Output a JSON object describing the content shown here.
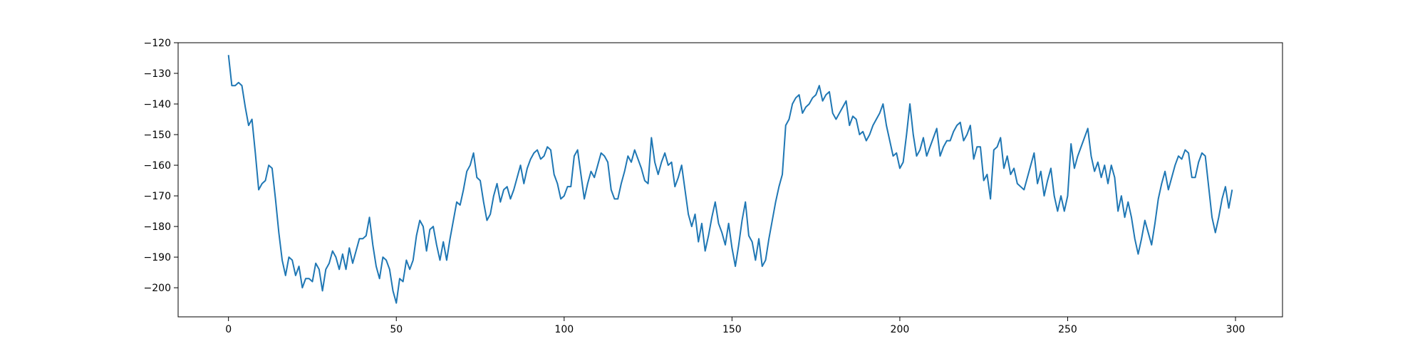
{
  "chart_data": {
    "type": "line",
    "title": "",
    "xlabel": "",
    "ylabel": "",
    "xlim": [
      -15,
      314
    ],
    "ylim": [
      -209.5,
      -120
    ],
    "grid": false,
    "x_ticks": [
      0,
      50,
      100,
      150,
      200,
      250,
      300
    ],
    "y_ticks": [
      -200,
      -190,
      -180,
      -170,
      -160,
      -150,
      -140,
      -130,
      -120
    ],
    "x_tick_labels": [
      "0",
      "50",
      "100",
      "150",
      "200",
      "250",
      "300"
    ],
    "y_tick_labels": [
      "−200",
      "−190",
      "−180",
      "−170",
      "−160",
      "−150",
      "−140",
      "−130",
      "−120"
    ],
    "series": [
      {
        "color": "#1f77b4",
        "x": [
          0,
          1,
          2,
          3,
          4,
          5,
          6,
          7,
          8,
          9,
          10,
          11,
          12,
          13,
          14,
          15,
          16,
          17,
          18,
          19,
          20,
          21,
          22,
          23,
          24,
          25,
          26,
          27,
          28,
          29,
          30,
          31,
          32,
          33,
          34,
          35,
          36,
          37,
          38,
          39,
          40,
          41,
          42,
          43,
          44,
          45,
          46,
          47,
          48,
          49,
          50,
          51,
          52,
          53,
          54,
          55,
          56,
          57,
          58,
          59,
          60,
          61,
          62,
          63,
          64,
          65,
          66,
          67,
          68,
          69,
          70,
          71,
          72,
          73,
          74,
          75,
          76,
          77,
          78,
          79,
          80,
          81,
          82,
          83,
          84,
          85,
          86,
          87,
          88,
          89,
          90,
          91,
          92,
          93,
          94,
          95,
          96,
          97,
          98,
          99,
          100,
          101,
          102,
          103,
          104,
          105,
          106,
          107,
          108,
          109,
          110,
          111,
          112,
          113,
          114,
          115,
          116,
          117,
          118,
          119,
          120,
          121,
          122,
          123,
          124,
          125,
          126,
          127,
          128,
          129,
          130,
          131,
          132,
          133,
          134,
          135,
          136,
          137,
          138,
          139,
          140,
          141,
          142,
          143,
          144,
          145,
          146,
          147,
          148,
          149,
          150,
          151,
          152,
          153,
          154,
          155,
          156,
          157,
          158,
          159,
          160,
          161,
          162,
          163,
          164,
          165,
          166,
          167,
          168,
          169,
          170,
          171,
          172,
          173,
          174,
          175,
          176,
          177,
          178,
          179,
          180,
          181,
          182,
          183,
          184,
          185,
          186,
          187,
          188,
          189,
          190,
          191,
          192,
          193,
          194,
          195,
          196,
          197,
          198,
          199,
          200,
          201,
          202,
          203,
          204,
          205,
          206,
          207,
          208,
          209,
          210,
          211,
          212,
          213,
          214,
          215,
          216,
          217,
          218,
          219,
          220,
          221,
          222,
          223,
          224,
          225,
          226,
          227,
          228,
          229,
          230,
          231,
          232,
          233,
          234,
          235,
          236,
          237,
          238,
          239,
          240,
          241,
          242,
          243,
          244,
          245,
          246,
          247,
          248,
          249,
          250,
          251,
          252,
          253,
          254,
          255,
          256,
          257,
          258,
          259,
          260,
          261,
          262,
          263,
          264,
          265,
          266,
          267,
          268,
          269,
          270,
          271,
          272,
          273,
          274,
          275,
          276,
          277,
          278,
          279,
          280,
          281,
          282,
          283,
          284,
          285,
          286,
          287,
          288,
          289,
          290,
          291,
          292,
          293,
          294,
          295,
          296,
          297,
          298,
          299
        ],
        "y": [
          -124,
          -134,
          -134,
          -133,
          -134,
          -141,
          -147,
          -145,
          -156,
          -168,
          -166,
          -165,
          -160,
          -161,
          -171,
          -182,
          -191,
          -196,
          -190,
          -191,
          -196,
          -193,
          -200,
          -197,
          -197,
          -198,
          -192,
          -194,
          -201,
          -194,
          -192,
          -188,
          -190,
          -194,
          -189,
          -194,
          -187,
          -192,
          -188,
          -184,
          -184,
          -183,
          -177,
          -186,
          -193,
          -197,
          -190,
          -191,
          -194,
          -201,
          -205,
          -197,
          -198,
          -191,
          -194,
          -191,
          -183,
          -178,
          -180,
          -188,
          -181,
          -180,
          -186,
          -191,
          -185,
          -191,
          -184,
          -178,
          -172,
          -173,
          -168,
          -162,
          -160,
          -156,
          -164,
          -165,
          -172,
          -178,
          -176,
          -170,
          -166,
          -172,
          -168,
          -167,
          -171,
          -168,
          -164,
          -160,
          -166,
          -161,
          -158,
          -156,
          -155,
          -158,
          -157,
          -154,
          -155,
          -163,
          -166,
          -171,
          -170,
          -167,
          -167,
          -157,
          -155,
          -163,
          -171,
          -166,
          -162,
          -164,
          -160,
          -156,
          -157,
          -159,
          -168,
          -171,
          -171,
          -166,
          -162,
          -157,
          -159,
          -155,
          -158,
          -161,
          -165,
          -166,
          -151,
          -159,
          -163,
          -159,
          -156,
          -160,
          -159,
          -167,
          -164,
          -160,
          -168,
          -176,
          -180,
          -176,
          -185,
          -179,
          -188,
          -183,
          -177,
          -172,
          -179,
          -182,
          -186,
          -179,
          -187,
          -193,
          -186,
          -178,
          -172,
          -183,
          -185,
          -191,
          -184,
          -193,
          -191,
          -184,
          -178,
          -172,
          -167,
          -163,
          -147,
          -145,
          -140,
          -138,
          -137,
          -143,
          -141,
          -140,
          -138,
          -137,
          -134,
          -139,
          -137,
          -136,
          -143,
          -145,
          -143,
          -141,
          -139,
          -147,
          -144,
          -145,
          -150,
          -149,
          -152,
          -150,
          -147,
          -145,
          -143,
          -140,
          -147,
          -152,
          -157,
          -156,
          -161,
          -159,
          -150,
          -140,
          -150,
          -157,
          -155,
          -151,
          -157,
          -154,
          -151,
          -148,
          -157,
          -154,
          -152,
          -152,
          -149,
          -147,
          -146,
          -152,
          -150,
          -147,
          -158,
          -154,
          -154,
          -165,
          -163,
          -171,
          -155,
          -154,
          -151,
          -161,
          -157,
          -163,
          -161,
          -166,
          -167,
          -168,
          -164,
          -160,
          -156,
          -166,
          -162,
          -170,
          -165,
          -161,
          -170,
          -175,
          -170,
          -175,
          -170,
          -153,
          -161,
          -157,
          -154,
          -151,
          -148,
          -157,
          -162,
          -159,
          -164,
          -160,
          -166,
          -160,
          -164,
          -175,
          -170,
          -177,
          -172,
          -177,
          -184,
          -189,
          -184,
          -178,
          -182,
          -186,
          -179,
          -171,
          -166,
          -162,
          -168,
          -164,
          -160,
          -157,
          -158,
          -155,
          -156,
          -164,
          -164,
          -159,
          -156,
          -157,
          -167,
          -177,
          -182,
          -177,
          -171,
          -167,
          -174,
          -168
        ]
      }
    ]
  }
}
